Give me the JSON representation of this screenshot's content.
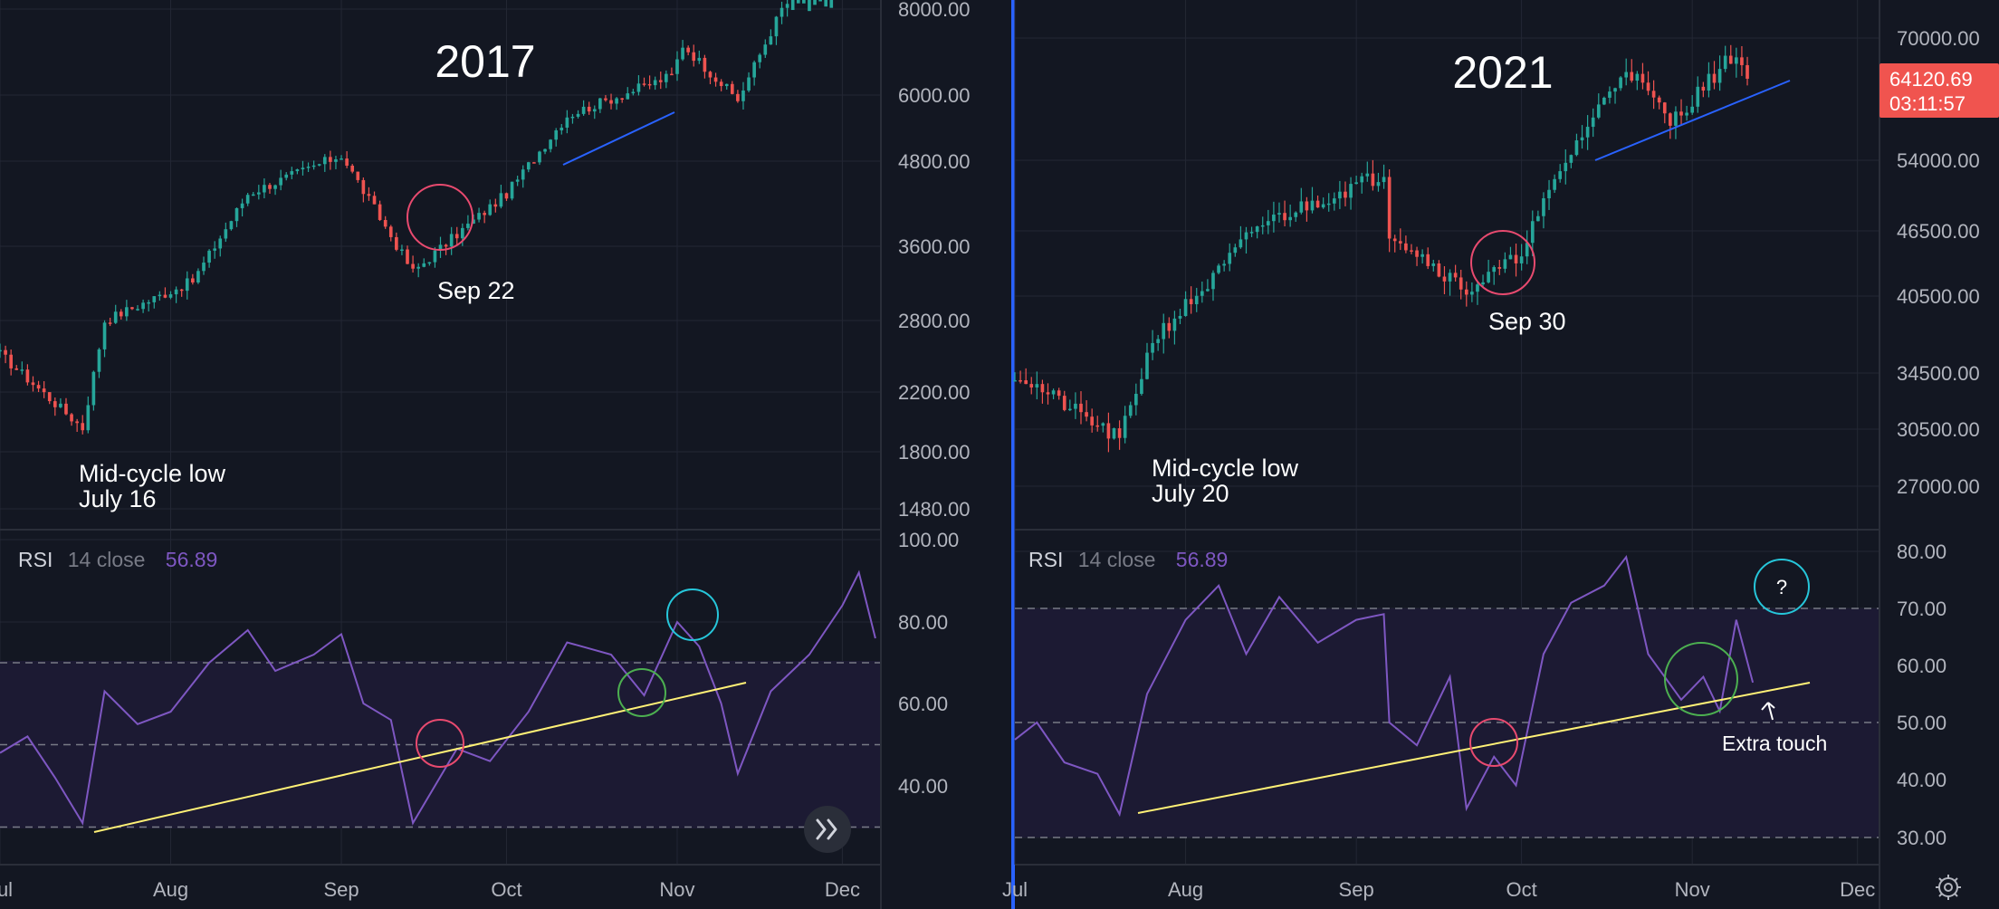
{
  "colors": {
    "background": "#131722",
    "grid": "#232734",
    "up_candle": "#26a69a",
    "down_candle": "#ef5350",
    "rsi_line": "#7e57c2",
    "rsi_band_fill": "#1c1a33",
    "trendline_price": "#2962ff",
    "trendline_rsi": "#ffeb3b",
    "circle_red": "#e84a6f",
    "circle_green": "#4caf50",
    "circle_cyan": "#26c6da",
    "price_tag": "#f0544f",
    "separator": "#2962ff"
  },
  "x_axis": {
    "left": [
      "Jul",
      "Aug",
      "Sep",
      "Oct",
      "Nov",
      "Dec"
    ],
    "right": [
      "Jul",
      "Aug",
      "Sep",
      "Oct",
      "Nov",
      "Dec"
    ]
  },
  "annotations": {
    "left": {
      "title": "2017",
      "low_label_line1": "Mid-cycle low",
      "low_label_line2": "July 16",
      "sep_label": "Sep 22"
    },
    "right": {
      "title": "2021",
      "low_label_line1": "Mid-cycle low",
      "low_label_line2": "July 20",
      "sep_label": "Sep 30",
      "question": "?",
      "extra_touch": "Extra touch"
    }
  },
  "rsi_legend": {
    "name": "RSI",
    "params": "14 close",
    "left_value": "56.89",
    "right_value": "56.89"
  },
  "price_tag": {
    "price": "64120.69",
    "countdown": "03:11:57"
  },
  "scroll_button_icon": "double-chevron-right-icon",
  "settings_icon": "gear-icon",
  "chart_data": [
    {
      "type": "candlestick",
      "title": "2017",
      "x_range": [
        "2017-07-01",
        "2017-12-08"
      ],
      "y_scale": "log",
      "y_ticks": [
        "8000.00",
        "6000.00",
        "4800.00",
        "3600.00",
        "2800.00",
        "2200.00",
        "1800.00",
        "1480.00"
      ],
      "key_points": [
        {
          "date": "2017-07-01",
          "close": 2500
        },
        {
          "date": "2017-07-16",
          "close": 1950
        },
        {
          "date": "2017-07-20",
          "close": 2800
        },
        {
          "date": "2017-08-05",
          "close": 3200
        },
        {
          "date": "2017-08-15",
          "close": 4300
        },
        {
          "date": "2017-09-01",
          "close": 4900
        },
        {
          "date": "2017-09-14",
          "close": 3300
        },
        {
          "date": "2017-09-22",
          "close": 3750
        },
        {
          "date": "2017-10-01",
          "close": 4300
        },
        {
          "date": "2017-10-12",
          "close": 5600
        },
        {
          "date": "2017-10-31",
          "close": 6400
        },
        {
          "date": "2017-11-02",
          "close": 7100
        },
        {
          "date": "2017-11-12",
          "close": 5900
        },
        {
          "date": "2017-11-20",
          "close": 8000
        },
        {
          "date": "2017-11-29",
          "close": 9500
        }
      ]
    },
    {
      "type": "candlestick",
      "title": "2021",
      "x_range": [
        "2021-07-01",
        "2021-12-05"
      ],
      "y_scale": "log",
      "y_ticks": [
        "70000.00",
        "54000.00",
        "46500.00",
        "40500.00",
        "34500.00",
        "30500.00",
        "27000.00"
      ],
      "last_price": "64120.69",
      "key_points": [
        {
          "date": "2021-07-01",
          "close": 34500
        },
        {
          "date": "2021-07-20",
          "close": 29800
        },
        {
          "date": "2021-07-26",
          "close": 37000
        },
        {
          "date": "2021-08-06",
          "close": 42000
        },
        {
          "date": "2021-08-14",
          "close": 47000
        },
        {
          "date": "2021-09-06",
          "close": 52500
        },
        {
          "date": "2021-09-07",
          "close": 46500
        },
        {
          "date": "2021-09-21",
          "close": 41000
        },
        {
          "date": "2021-09-30",
          "close": 43800
        },
        {
          "date": "2021-10-10",
          "close": 55000
        },
        {
          "date": "2021-10-20",
          "close": 66000
        },
        {
          "date": "2021-10-28",
          "close": 58500
        },
        {
          "date": "2021-11-09",
          "close": 68000
        },
        {
          "date": "2021-11-11",
          "close": 64120.69
        }
      ]
    },
    {
      "type": "line",
      "title": "RSI 14 close",
      "x_range": [
        "2017-07-01",
        "2017-12-08"
      ],
      "y_ticks": [
        "100.00",
        "80.00",
        "60.00",
        "40.00"
      ],
      "bands": [
        30,
        50,
        70
      ],
      "last_value": 56.89,
      "points": [
        [
          "2017-07-01",
          48
        ],
        [
          "2017-07-06",
          52
        ],
        [
          "2017-07-11",
          42
        ],
        [
          "2017-07-16",
          31
        ],
        [
          "2017-07-20",
          63
        ],
        [
          "2017-07-26",
          55
        ],
        [
          "2017-08-01",
          58
        ],
        [
          "2017-08-08",
          70
        ],
        [
          "2017-08-15",
          78
        ],
        [
          "2017-08-20",
          68
        ],
        [
          "2017-08-27",
          72
        ],
        [
          "2017-09-01",
          77
        ],
        [
          "2017-09-05",
          60
        ],
        [
          "2017-09-10",
          56
        ],
        [
          "2017-09-14",
          31
        ],
        [
          "2017-09-22",
          49
        ],
        [
          "2017-09-28",
          46
        ],
        [
          "2017-10-05",
          58
        ],
        [
          "2017-10-12",
          75
        ],
        [
          "2017-10-20",
          72
        ],
        [
          "2017-10-26",
          62
        ],
        [
          "2017-11-01",
          80
        ],
        [
          "2017-11-05",
          74
        ],
        [
          "2017-11-09",
          60
        ],
        [
          "2017-11-12",
          43
        ],
        [
          "2017-11-18",
          63
        ],
        [
          "2017-11-25",
          72
        ],
        [
          "2017-12-01",
          84
        ],
        [
          "2017-12-04",
          92
        ],
        [
          "2017-12-07",
          76
        ]
      ]
    },
    {
      "type": "line",
      "title": "RSI 14 close",
      "x_range": [
        "2021-07-01",
        "2021-12-05"
      ],
      "y_ticks": [
        "80.00",
        "70.00",
        "60.00",
        "50.00",
        "40.00",
        "30.00"
      ],
      "bands": [
        30,
        50,
        70
      ],
      "last_value": 56.89,
      "points": [
        [
          "2021-07-01",
          47
        ],
        [
          "2021-07-05",
          50
        ],
        [
          "2021-07-10",
          43
        ],
        [
          "2021-07-16",
          41
        ],
        [
          "2021-07-20",
          34
        ],
        [
          "2021-07-25",
          55
        ],
        [
          "2021-08-01",
          68
        ],
        [
          "2021-08-07",
          74
        ],
        [
          "2021-08-12",
          62
        ],
        [
          "2021-08-18",
          72
        ],
        [
          "2021-08-25",
          64
        ],
        [
          "2021-09-01",
          68
        ],
        [
          "2021-09-06",
          69
        ],
        [
          "2021-09-07",
          50
        ],
        [
          "2021-09-12",
          46
        ],
        [
          "2021-09-18",
          58
        ],
        [
          "2021-09-21",
          35
        ],
        [
          "2021-09-26",
          44
        ],
        [
          "2021-09-30",
          39
        ],
        [
          "2021-10-05",
          62
        ],
        [
          "2021-10-10",
          71
        ],
        [
          "2021-10-16",
          74
        ],
        [
          "2021-10-20",
          79
        ],
        [
          "2021-10-24",
          62
        ],
        [
          "2021-10-30",
          54
        ],
        [
          "2021-11-03",
          58
        ],
        [
          "2021-11-06",
          52
        ],
        [
          "2021-11-09",
          68
        ],
        [
          "2021-11-12",
          57
        ]
      ]
    }
  ]
}
